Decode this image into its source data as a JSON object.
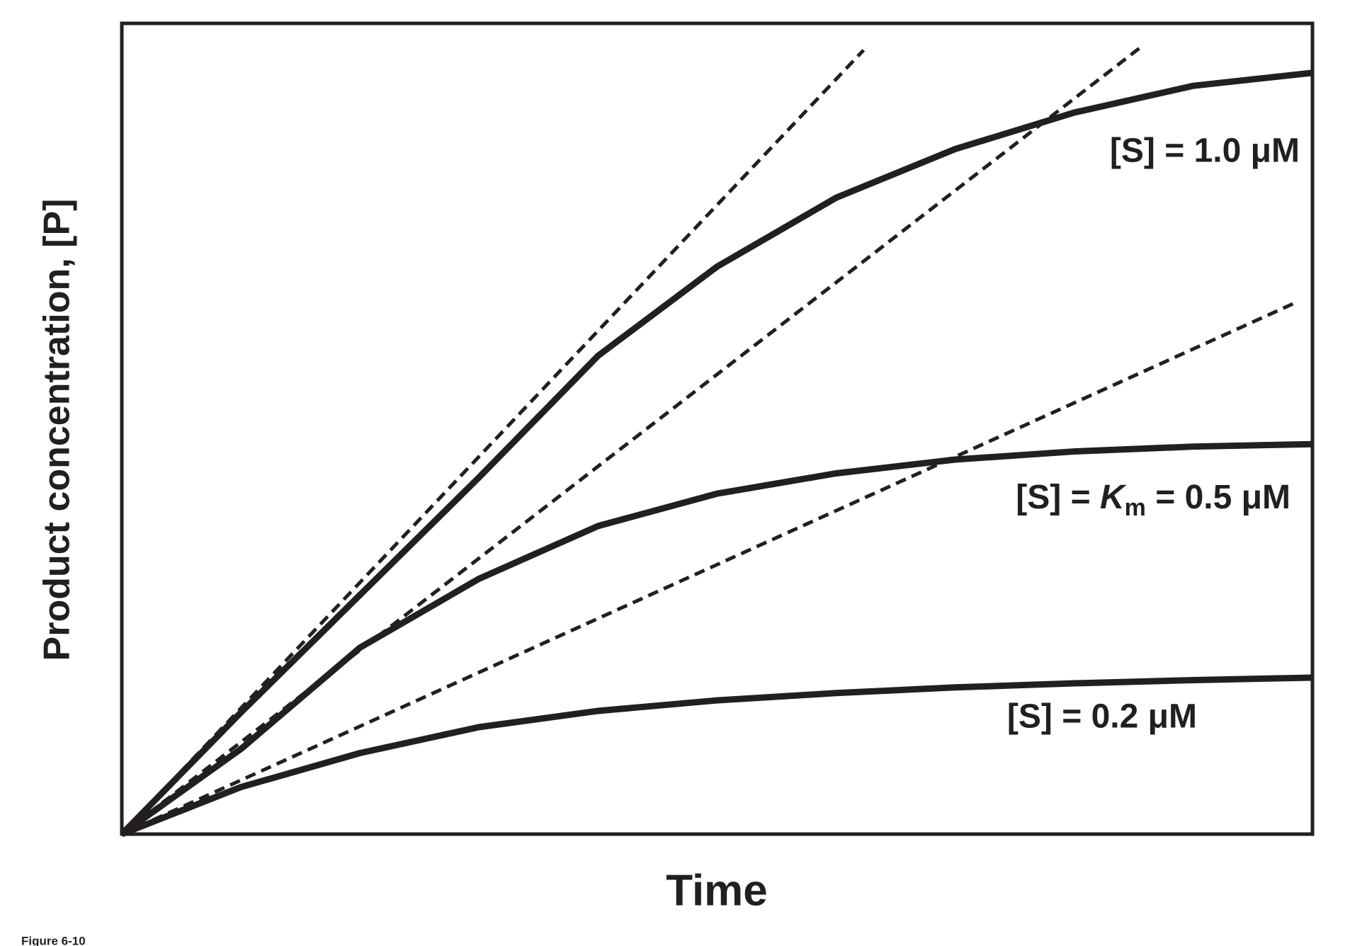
{
  "caption": "Figure 6-10",
  "chart_data": {
    "type": "line",
    "xlabel": "Time",
    "ylabel": "Product concentration, [P]",
    "xlim": [
      0,
      100
    ],
    "ylim": [
      0,
      100
    ],
    "x": [
      0,
      10,
      20,
      30,
      40,
      50,
      60,
      70,
      80,
      90,
      100
    ],
    "series": [
      {
        "name": "[S] = 1.0 μM",
        "color": "#231f20",
        "values": [
          0,
          15,
          29.5,
          44,
          59,
          70,
          78.5,
          84.5,
          89,
          92.3,
          93.9
        ]
      },
      {
        "name_parts": [
          "[S] = ",
          "K",
          "m",
          " = 0.5 μM"
        ],
        "color": "#231f20",
        "values": [
          0,
          10.5,
          23,
          31.5,
          38,
          42,
          44.5,
          46.2,
          47.2,
          47.8,
          48.1
        ]
      },
      {
        "name": "[S] = 0.2 μM",
        "color": "#231f20",
        "values": [
          0,
          5.8,
          10,
          13.2,
          15.2,
          16.5,
          17.4,
          18.1,
          18.6,
          19.0,
          19.3
        ]
      }
    ],
    "tangents": [
      {
        "x": [
          0,
          62.3
        ],
        "values": [
          0,
          96.7
        ],
        "style": "dashed",
        "color": "#231f20"
      },
      {
        "x": [
          0,
          85.7
        ],
        "values": [
          0,
          97.2
        ],
        "style": "dashed",
        "color": "#231f20"
      },
      {
        "x": [
          0,
          98.5
        ],
        "values": [
          0,
          65.5
        ],
        "style": "dashed",
        "color": "#231f20"
      }
    ]
  }
}
